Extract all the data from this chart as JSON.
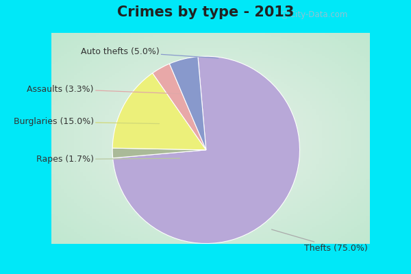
{
  "title": "Crimes by type - 2013",
  "title_fontsize": 15,
  "title_fontweight": "bold",
  "slices": [
    {
      "label": "Thefts",
      "value": 75.0,
      "color": "#b8a8d8",
      "pct": "75.0%"
    },
    {
      "label": "Rapes",
      "value": 1.7,
      "color": "#aaba98",
      "pct": "1.7%"
    },
    {
      "label": "Burglaries",
      "value": 15.0,
      "color": "#ecf07a",
      "pct": "15.0%"
    },
    {
      "label": "Assaults",
      "value": 3.3,
      "color": "#e8a8a8",
      "pct": "3.3%"
    },
    {
      "label": "Auto thefts",
      "value": 5.0,
      "color": "#8899cc",
      "pct": "5.0%"
    }
  ],
  "border_color": "#00e8f8",
  "border_thickness": 8,
  "bg_center": "#e8f0e8",
  "bg_edge": "#c0e8d0",
  "watermark": " City-Data.com",
  "label_fontsize": 9,
  "label_color": "#333333",
  "title_color": "#222222",
  "arrow_color_thefts": "#aaaaaa",
  "arrow_color_rapes": "#c8d8b0",
  "arrow_color_assaults": "#e8b0b0",
  "arrow_color_burglaries": "#d8e890",
  "arrow_color_autothefts": "#8899cc"
}
